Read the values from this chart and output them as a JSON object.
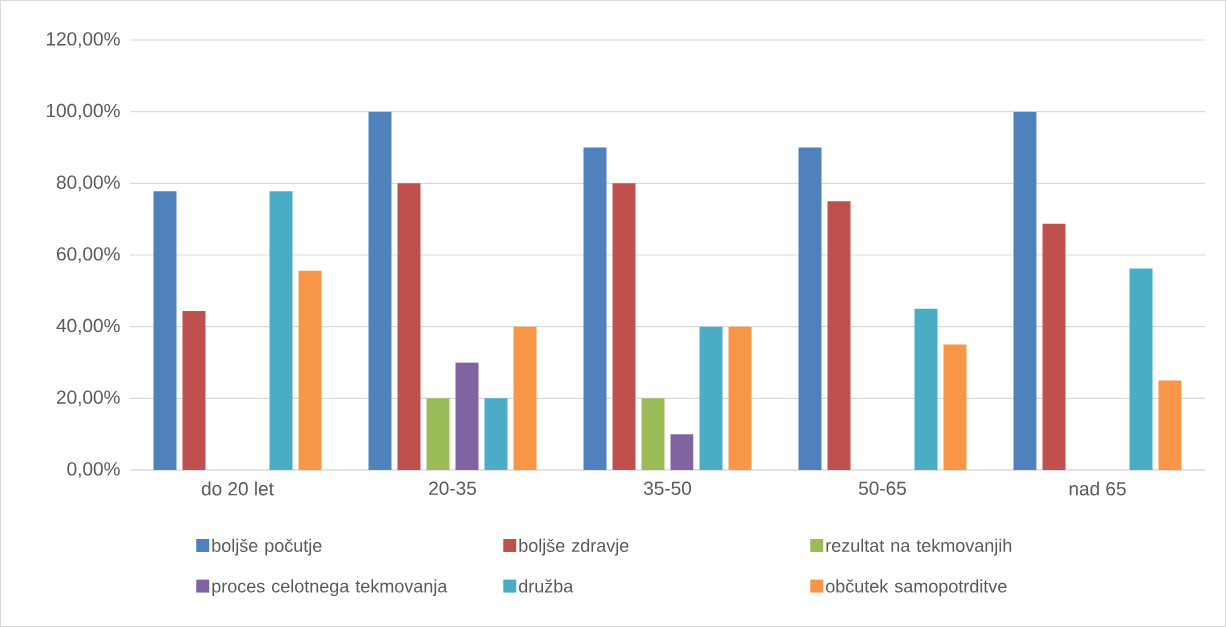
{
  "chart_data": {
    "type": "bar",
    "categories": [
      "do 20 let",
      "20-35",
      "35-50",
      "50-65",
      "nad 65"
    ],
    "series": [
      {
        "name": "boljše počutje",
        "color": "#4f81bd",
        "values": [
          77.8,
          100,
          90,
          90,
          100
        ]
      },
      {
        "name": "boljše zdravje",
        "color": "#c0504d",
        "values": [
          44.4,
          80,
          80,
          75,
          68.75
        ]
      },
      {
        "name": "rezultat na tekmovanjih",
        "color": "#9bbb59",
        "values": [
          null,
          20,
          20,
          null,
          null
        ]
      },
      {
        "name": "proces celotnega tekmovanja",
        "color": "#8064a2",
        "values": [
          null,
          30,
          10,
          null,
          null
        ]
      },
      {
        "name": "družba",
        "color": "#4bacc6",
        "values": [
          77.8,
          20,
          40,
          45,
          56.25
        ]
      },
      {
        "name": "občutek  samopotrditve",
        "color": "#f79646",
        "values": [
          55.6,
          40,
          40,
          35,
          25
        ]
      }
    ],
    "ylim": [
      0,
      120
    ],
    "yticks": [
      {
        "value": 0,
        "label": "0,00%"
      },
      {
        "value": 20,
        "label": "20,00%"
      },
      {
        "value": 40,
        "label": "40,00%"
      },
      {
        "value": 60,
        "label": "60,00%"
      },
      {
        "value": 80,
        "label": "80,00%"
      },
      {
        "value": 100,
        "label": "100,00%"
      },
      {
        "value": 120,
        "label": "120,00%"
      }
    ],
    "grid": "y",
    "legend": "bottom"
  }
}
